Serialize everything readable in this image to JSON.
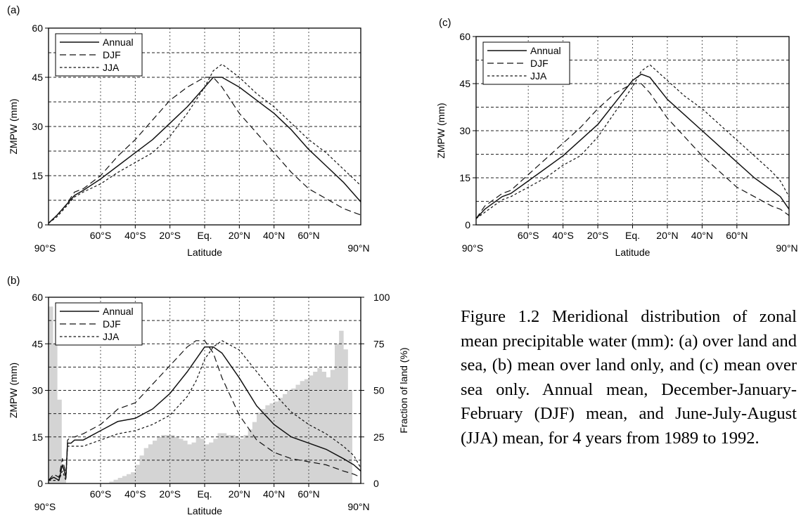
{
  "caption": "Figure 1.2 Meridional distribution of zonal mean precipitable water (mm): (a) over land and sea, (b) mean over land only, and (c) mean over sea only. Annual mean, December-January-February (DJF) mean, and June-July-August (JJA) mean, for 4 years from 1989 to 1992.",
  "chart_data": [
    {
      "panel": "(a)",
      "type": "line",
      "xlabel": "Latitude",
      "ylabel": "ZMPW (mm)",
      "xlim": [
        -90,
        90
      ],
      "ylim": [
        0,
        60
      ],
      "xticks": [
        -60,
        -40,
        -20,
        0,
        20,
        40,
        60
      ],
      "xtick_labels": [
        "60°S",
        "40°S",
        "20°S",
        "Eq.",
        "20°N",
        "40°N",
        "60°N"
      ],
      "x_end_labels": [
        "90°S",
        "90°N"
      ],
      "yticks": [
        0,
        15,
        30,
        45,
        60
      ],
      "ytick_labels": [
        "0",
        "15",
        "30",
        "45",
        "60"
      ],
      "legend": "top-left",
      "series": [
        {
          "name": "Annual",
          "dash": "solid",
          "x": [
            -90,
            -85,
            -80,
            -75,
            -70,
            -60,
            -50,
            -40,
            -30,
            -20,
            -10,
            0,
            5,
            10,
            20,
            30,
            40,
            50,
            60,
            70,
            80,
            90
          ],
          "values": [
            0.5,
            3,
            6,
            9,
            10.5,
            14,
            18,
            22,
            26,
            31,
            36,
            42,
            45,
            45,
            42,
            38,
            34,
            29,
            23,
            18,
            13,
            7
          ]
        },
        {
          "name": "DJF",
          "dash": "long",
          "x": [
            -90,
            -85,
            -80,
            -75,
            -70,
            -60,
            -50,
            -40,
            -30,
            -20,
            -10,
            0,
            5,
            10,
            20,
            30,
            40,
            50,
            60,
            70,
            80,
            90
          ],
          "values": [
            0.5,
            3,
            6,
            10,
            11,
            15,
            21,
            26,
            32,
            38,
            42,
            45,
            45,
            42,
            34,
            28,
            22,
            16,
            11,
            8,
            5,
            3
          ]
        },
        {
          "name": "JJA",
          "dash": "short",
          "x": [
            -90,
            -85,
            -80,
            -75,
            -70,
            -60,
            -50,
            -40,
            -30,
            -20,
            -10,
            0,
            5,
            10,
            20,
            30,
            40,
            50,
            60,
            70,
            80,
            90
          ],
          "values": [
            0.5,
            2.5,
            5.5,
            8.5,
            10,
            12.5,
            16,
            19,
            22,
            27,
            34,
            42,
            47,
            49,
            45,
            40,
            36,
            31,
            26,
            22,
            17,
            12
          ]
        }
      ]
    },
    {
      "panel": "(b)",
      "type": "line",
      "xlabel": "Latitude",
      "ylabel": "ZMPW (mm)",
      "y2label": "Fraction of land (%)",
      "xlim": [
        -90,
        90
      ],
      "ylim": [
        0,
        60
      ],
      "y2lim": [
        0,
        100
      ],
      "xticks": [
        -60,
        -40,
        -20,
        0,
        20,
        40,
        60
      ],
      "xtick_labels": [
        "60°S",
        "40°S",
        "20°S",
        "Eq.",
        "20°N",
        "40°N",
        "60°N"
      ],
      "x_end_labels": [
        "90°S",
        "90°N"
      ],
      "yticks": [
        0,
        15,
        30,
        45,
        60
      ],
      "ytick_labels": [
        "0",
        "15",
        "30",
        "45",
        "60"
      ],
      "y2ticks": [
        0,
        25,
        50,
        75,
        100
      ],
      "y2tick_labels": [
        "0",
        "25",
        "50",
        "75",
        "100"
      ],
      "legend": "top-left",
      "land_fraction": {
        "x_start": [
          -90,
          -87.5,
          -85,
          -82.5,
          -80,
          -77.5,
          -75,
          -72.5,
          -70,
          -67.5,
          -65,
          -62.5,
          -60,
          -57.5,
          -55,
          -52.5,
          -50,
          -47.5,
          -45,
          -42.5,
          -40,
          -37.5,
          -35,
          -32.5,
          -30,
          -27.5,
          -25,
          -22.5,
          -20,
          -17.5,
          -15,
          -12.5,
          -10,
          -7.5,
          -5,
          -2.5,
          0,
          2.5,
          5,
          7.5,
          10,
          12.5,
          15,
          17.5,
          20,
          22.5,
          25,
          27.5,
          30,
          32.5,
          35,
          37.5,
          40,
          42.5,
          45,
          47.5,
          50,
          52.5,
          55,
          57.5,
          60,
          62.5,
          65,
          67.5,
          70,
          72.5,
          75,
          77.5,
          80,
          82.5,
          85,
          87.5
        ],
        "values": [
          95,
          75,
          45,
          5,
          0,
          0,
          0,
          0,
          0,
          0,
          0,
          0,
          0,
          0,
          1,
          2,
          3,
          4,
          5,
          6,
          10,
          15,
          19,
          21,
          23,
          25,
          26,
          26,
          26,
          25,
          24,
          23,
          21,
          22,
          25,
          24,
          21,
          22,
          24,
          27,
          27,
          26,
          26,
          25,
          24,
          26,
          29,
          33,
          38,
          40,
          42,
          43,
          44,
          46,
          48,
          50,
          51,
          53,
          55,
          56,
          58,
          60,
          62,
          60,
          57,
          61,
          75,
          82,
          72,
          50,
          0,
          0
        ]
      },
      "series": [
        {
          "name": "Annual",
          "dash": "solid",
          "x": [
            -90,
            -87,
            -84,
            -82,
            -80,
            -79,
            -77,
            -75,
            -70,
            -60,
            -50,
            -40,
            -30,
            -20,
            -10,
            -5,
            0,
            5,
            10,
            20,
            30,
            40,
            50,
            60,
            70,
            80,
            86,
            90
          ],
          "values": [
            1,
            2,
            1,
            6,
            2,
            13,
            13,
            14,
            14,
            17,
            20,
            21,
            24,
            29,
            36,
            40,
            44,
            44,
            42,
            34,
            25,
            19,
            15,
            13,
            11,
            8,
            6,
            4
          ]
        },
        {
          "name": "DJF",
          "dash": "long",
          "x": [
            -90,
            -87,
            -84,
            -82,
            -80,
            -79,
            -77,
            -75,
            -70,
            -60,
            -50,
            -40,
            -30,
            -20,
            -10,
            -5,
            0,
            5,
            10,
            20,
            30,
            40,
            50,
            60,
            70,
            80,
            86,
            90
          ],
          "values": [
            1,
            3,
            2,
            8,
            3,
            14,
            15,
            15,
            16,
            19,
            24,
            26,
            32,
            38,
            44,
            46,
            46,
            42,
            34,
            22,
            14,
            10,
            8,
            7,
            6,
            4,
            3,
            2
          ]
        },
        {
          "name": "JJA",
          "dash": "short",
          "x": [
            -90,
            -87,
            -84,
            -82,
            -80,
            -79,
            -77,
            -75,
            -70,
            -60,
            -50,
            -40,
            -30,
            -20,
            -10,
            -5,
            0,
            5,
            10,
            20,
            30,
            40,
            50,
            60,
            70,
            80,
            86,
            90
          ],
          "values": [
            1,
            1,
            1,
            4,
            1,
            12,
            12,
            12,
            12,
            14,
            16,
            17,
            19,
            22,
            28,
            33,
            40,
            44,
            46,
            43,
            36,
            29,
            23,
            19,
            16,
            12,
            9,
            5
          ]
        }
      ]
    },
    {
      "panel": "(c)",
      "type": "line",
      "xlabel": "Latitude",
      "ylabel": "ZMPW (mm)",
      "xlim": [
        -90,
        90
      ],
      "ylim": [
        0,
        60
      ],
      "xticks": [
        -60,
        -40,
        -20,
        0,
        20,
        40,
        60
      ],
      "xtick_labels": [
        "60°S",
        "40°S",
        "20°S",
        "Eq.",
        "20°N",
        "40°N",
        "60°N"
      ],
      "x_end_labels": [
        "90°S",
        "90°N"
      ],
      "yticks": [
        0,
        15,
        30,
        45,
        60
      ],
      "ytick_labels": [
        "0",
        "15",
        "30",
        "45",
        "60"
      ],
      "legend": "top-left",
      "series": [
        {
          "name": "Annual",
          "dash": "solid",
          "x": [
            -90,
            -85,
            -80,
            -75,
            -70,
            -60,
            -50,
            -40,
            -30,
            -20,
            -10,
            0,
            5,
            10,
            20,
            30,
            40,
            50,
            60,
            70,
            80,
            85,
            90
          ],
          "values": [
            2,
            5,
            7,
            9,
            10,
            14,
            18,
            22,
            27,
            32,
            39,
            46,
            48,
            47,
            40,
            35,
            30,
            25,
            20,
            15,
            11,
            9,
            5
          ]
        },
        {
          "name": "DJF",
          "dash": "long",
          "x": [
            -90,
            -85,
            -80,
            -75,
            -70,
            -60,
            -50,
            -40,
            -30,
            -20,
            -10,
            0,
            5,
            10,
            20,
            30,
            40,
            50,
            60,
            70,
            80,
            85,
            90
          ],
          "values": [
            2,
            6,
            8,
            10,
            11,
            16,
            21,
            26,
            31,
            37,
            42,
            45,
            45,
            42,
            34,
            28,
            22,
            17,
            12,
            9,
            6,
            5,
            3
          ]
        },
        {
          "name": "JJA",
          "dash": "short",
          "x": [
            -90,
            -85,
            -80,
            -75,
            -70,
            -60,
            -50,
            -40,
            -30,
            -20,
            -10,
            0,
            5,
            10,
            20,
            30,
            40,
            50,
            60,
            70,
            80,
            85,
            90
          ],
          "values": [
            2,
            4,
            6,
            8,
            9,
            12,
            15,
            19,
            22,
            28,
            36,
            44,
            49,
            51,
            46,
            41,
            37,
            32,
            27,
            22,
            17,
            14,
            9
          ]
        }
      ]
    }
  ]
}
